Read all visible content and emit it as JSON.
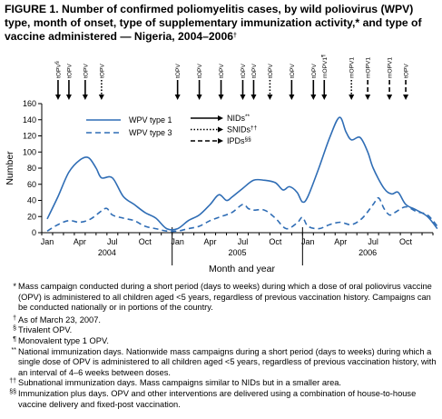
{
  "title": "FIGURE 1. Number of confirmed poliomyelitis cases, by wild poliovirus (WPV) type, month of onset, type of supplementary immunization activity,* and type of vaccine administered — Nigeria, 2004–2006",
  "title_mark": "†",
  "chart_data": {
    "type": "line",
    "ylabel": "Number",
    "xlabel": "Month and year",
    "ylim": [
      0,
      160
    ],
    "y_ticks": [
      0,
      20,
      40,
      60,
      80,
      100,
      120,
      140,
      160
    ],
    "x_tick_labels": [
      "Jan",
      "Apr",
      "Jul",
      "Oct",
      "Jan",
      "Apr",
      "Jul",
      "Oct",
      "Jan",
      "Apr",
      "Jul",
      "Oct"
    ],
    "year_labels": [
      "2004",
      "2005",
      "2006"
    ],
    "series": [
      {
        "name": "WPV type 1",
        "style": "solid",
        "color": "#2f6db5",
        "points": [
          [
            0,
            17
          ],
          [
            1,
            45
          ],
          [
            2,
            75
          ],
          [
            3,
            90
          ],
          [
            3.8,
            93
          ],
          [
            4.5,
            80
          ],
          [
            5,
            68
          ],
          [
            6,
            68
          ],
          [
            7,
            45
          ],
          [
            8,
            35
          ],
          [
            9,
            25
          ],
          [
            10,
            18
          ],
          [
            11,
            5
          ],
          [
            12,
            5
          ],
          [
            13,
            15
          ],
          [
            14,
            22
          ],
          [
            15,
            35
          ],
          [
            15.8,
            47
          ],
          [
            16.5,
            40
          ],
          [
            17,
            44
          ],
          [
            18,
            55
          ],
          [
            19,
            65
          ],
          [
            20,
            65
          ],
          [
            21,
            62
          ],
          [
            21.7,
            53
          ],
          [
            22.3,
            57
          ],
          [
            23,
            50
          ],
          [
            23.5,
            38
          ],
          [
            24,
            45
          ],
          [
            25,
            80
          ],
          [
            26,
            118
          ],
          [
            26.9,
            143
          ],
          [
            27.5,
            125
          ],
          [
            28,
            115
          ],
          [
            28.8,
            118
          ],
          [
            29.5,
            100
          ],
          [
            30,
            80
          ],
          [
            31,
            55
          ],
          [
            31.7,
            48
          ],
          [
            32.3,
            50
          ],
          [
            33,
            35
          ],
          [
            34,
            28
          ],
          [
            35,
            20
          ],
          [
            35.9,
            5
          ]
        ]
      },
      {
        "name": "WPV type 3",
        "style": "dashed",
        "color": "#2f6db5",
        "points": [
          [
            0,
            2
          ],
          [
            1,
            10
          ],
          [
            2,
            15
          ],
          [
            3,
            13
          ],
          [
            4,
            17
          ],
          [
            5,
            27
          ],
          [
            5.5,
            30
          ],
          [
            6,
            22
          ],
          [
            7,
            18
          ],
          [
            8,
            15
          ],
          [
            9,
            8
          ],
          [
            10,
            5
          ],
          [
            11,
            2
          ],
          [
            12,
            2
          ],
          [
            13,
            5
          ],
          [
            14,
            8
          ],
          [
            15,
            15
          ],
          [
            16,
            20
          ],
          [
            17,
            25
          ],
          [
            18,
            35
          ],
          [
            18.5,
            30
          ],
          [
            19,
            28
          ],
          [
            20,
            28
          ],
          [
            21,
            18
          ],
          [
            22,
            5
          ],
          [
            23,
            12
          ],
          [
            23.5,
            19
          ],
          [
            24,
            8
          ],
          [
            25,
            5
          ],
          [
            26,
            10
          ],
          [
            27,
            13
          ],
          [
            28,
            10
          ],
          [
            29,
            18
          ],
          [
            30,
            35
          ],
          [
            30.5,
            43
          ],
          [
            31,
            30
          ],
          [
            31.5,
            22
          ],
          [
            32,
            25
          ],
          [
            33,
            32
          ],
          [
            34,
            26
          ],
          [
            35,
            22
          ],
          [
            35.9,
            8
          ]
        ]
      }
    ],
    "legend": {
      "placement": "top-left",
      "activities": [
        {
          "name": "NIDs",
          "mark": "**",
          "style": "solid"
        },
        {
          "name": "SNIDs",
          "mark": "††",
          "style": "dotted"
        },
        {
          "name": "IPDs",
          "mark": "§§",
          "style": "dashed"
        }
      ]
    },
    "activity_markers": [
      {
        "month": 1,
        "label": "tOPV",
        "mark": "§",
        "style": "solid"
      },
      {
        "month": 2,
        "label": "tOPV",
        "style": "solid"
      },
      {
        "month": 3.5,
        "label": "tOPV",
        "style": "solid"
      },
      {
        "month": 5,
        "label": "tOPV",
        "style": "dotted"
      },
      {
        "month": 12,
        "label": "tOPV",
        "style": "solid"
      },
      {
        "month": 14,
        "label": "tOPV",
        "style": "solid"
      },
      {
        "month": 16,
        "label": "tOPV",
        "style": "solid"
      },
      {
        "month": 18,
        "label": "tOPV",
        "style": "solid"
      },
      {
        "month": 19,
        "label": "tOPV",
        "style": "solid"
      },
      {
        "month": 20.5,
        "label": "tOPV",
        "style": "dotted"
      },
      {
        "month": 22.5,
        "label": "tOPV",
        "style": "solid"
      },
      {
        "month": 24.5,
        "label": "tOPV",
        "style": "solid"
      },
      {
        "month": 25.5,
        "label": "mOPV1",
        "mark": "¶",
        "style": "solid"
      },
      {
        "month": 28,
        "label": "mOPV1",
        "style": "dotted"
      },
      {
        "month": 29.5,
        "label": "mOPV1",
        "style": "dashed"
      },
      {
        "month": 31.5,
        "label": "mOPV1",
        "style": "dashed"
      },
      {
        "month": 33,
        "label": "tOPV",
        "style": "dashed"
      }
    ]
  },
  "footnotes": [
    {
      "mark": "*",
      "text": "Mass campaign conducted during a short period (days to weeks) during which a dose of oral poliovirus vaccine (OPV) is administered to all children aged <5 years, regardless of previous vaccination history. Campaigns can be conducted nationally or in portions of the country."
    },
    {
      "mark": "†",
      "text": "As of March 23, 2007."
    },
    {
      "mark": "§",
      "text": "Trivalent OPV."
    },
    {
      "mark": "¶",
      "text": "Monovalent type 1 OPV."
    },
    {
      "mark": "**",
      "text": "National immunization days. Nationwide mass campaigns during a short period (days to weeks) during which a single dose of OPV is administered to all children aged <5 years, regardless of previous vaccination history, with an interval of 4–6 weeks between doses."
    },
    {
      "mark": "††",
      "text": "Subnational immunization days. Mass campaigns similar to NIDs but in a smaller area."
    },
    {
      "mark": "§§",
      "text": "Immunization plus days. OPV and other interventions are delivered using a combination of house-to-house vaccine delivery and fixed-post vaccination."
    }
  ]
}
